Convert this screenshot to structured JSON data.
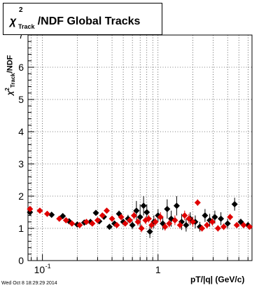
{
  "chart_data": {
    "type": "scatter",
    "title": "/NDF  Global Tracks",
    "ylabel": "/NDF",
    "xlabel": "pT/|q| (GeV/c)",
    "x_scale": "log",
    "xlim": [
      0.075,
      6.5
    ],
    "ylim": [
      0,
      7
    ],
    "grid": true,
    "y_ticks": [
      "0",
      "1",
      "2",
      "3",
      "4",
      "5",
      "6",
      "7"
    ],
    "x_ticks": [
      {
        "value": 0.1,
        "base": "10",
        "exp": "-1"
      },
      {
        "value": 1,
        "label": "1"
      }
    ],
    "series": [
      {
        "color": "#000000",
        "marker": "diamond",
        "points": [
          {
            "x": 0.078,
            "y": 1.5,
            "e": 0.1
          },
          {
            "x": 0.12,
            "y": 1.42,
            "e": 0.06
          },
          {
            "x": 0.15,
            "y": 1.38,
            "e": 0.06
          },
          {
            "x": 0.17,
            "y": 1.22,
            "e": 0.06
          },
          {
            "x": 0.2,
            "y": 1.12,
            "e": 0.05
          },
          {
            "x": 0.23,
            "y": 1.18,
            "e": 0.05
          },
          {
            "x": 0.26,
            "y": 1.2,
            "e": 0.05
          },
          {
            "x": 0.29,
            "y": 1.48,
            "e": 0.08
          },
          {
            "x": 0.31,
            "y": 1.22,
            "e": 0.06
          },
          {
            "x": 0.34,
            "y": 1.36,
            "e": 0.06
          },
          {
            "x": 0.38,
            "y": 1.05,
            "e": 0.06
          },
          {
            "x": 0.42,
            "y": 1.15,
            "e": 0.06
          },
          {
            "x": 0.46,
            "y": 1.45,
            "e": 0.1
          },
          {
            "x": 0.5,
            "y": 1.2,
            "e": 0.1
          },
          {
            "x": 0.55,
            "y": 1.3,
            "e": 0.12
          },
          {
            "x": 0.6,
            "y": 1.1,
            "e": 0.12
          },
          {
            "x": 0.65,
            "y": 1.55,
            "e": 0.3
          },
          {
            "x": 0.7,
            "y": 1.35,
            "e": 0.4
          },
          {
            "x": 0.75,
            "y": 1.7,
            "e": 0.3
          },
          {
            "x": 0.8,
            "y": 1.5,
            "e": 0.25
          },
          {
            "x": 0.85,
            "y": 0.9,
            "e": 0.2
          },
          {
            "x": 0.92,
            "y": 1.2,
            "e": 0.2
          },
          {
            "x": 1.0,
            "y": 1.4,
            "e": 0.2
          },
          {
            "x": 1.1,
            "y": 1.15,
            "e": 0.2
          },
          {
            "x": 1.2,
            "y": 1.6,
            "e": 0.3
          },
          {
            "x": 1.3,
            "y": 1.3,
            "e": 0.25
          },
          {
            "x": 1.45,
            "y": 1.7,
            "e": 0.3
          },
          {
            "x": 1.6,
            "y": 1.2,
            "e": 0.25
          },
          {
            "x": 1.75,
            "y": 1.1,
            "e": 0.2
          },
          {
            "x": 1.9,
            "y": 1.3,
            "e": 0.2
          },
          {
            "x": 2.1,
            "y": 1.2,
            "e": 0.2
          },
          {
            "x": 2.3,
            "y": 1.05,
            "e": 0.15
          },
          {
            "x": 2.55,
            "y": 1.4,
            "e": 0.2
          },
          {
            "x": 2.8,
            "y": 1.25,
            "e": 0.2
          },
          {
            "x": 3.1,
            "y": 1.35,
            "e": 0.2
          },
          {
            "x": 3.5,
            "y": 1.3,
            "e": 0.2
          },
          {
            "x": 4.0,
            "y": 1.15,
            "e": 0.15
          },
          {
            "x": 4.6,
            "y": 1.75,
            "e": 0.2
          },
          {
            "x": 5.2,
            "y": 1.2,
            "e": 0.1
          },
          {
            "x": 6.0,
            "y": 1.1,
            "e": 0.08
          }
        ]
      },
      {
        "color": "#e00000",
        "marker": "diamond",
        "points": [
          {
            "x": 0.078,
            "y": 1.6,
            "e": 0.08
          },
          {
            "x": 0.095,
            "y": 1.55,
            "e": 0.05
          },
          {
            "x": 0.11,
            "y": 1.45,
            "e": 0.05
          },
          {
            "x": 0.14,
            "y": 1.3,
            "e": 0.05
          },
          {
            "x": 0.16,
            "y": 1.25,
            "e": 0.05
          },
          {
            "x": 0.18,
            "y": 1.15,
            "e": 0.05
          },
          {
            "x": 0.21,
            "y": 1.1,
            "e": 0.05
          },
          {
            "x": 0.24,
            "y": 1.2,
            "e": 0.05
          },
          {
            "x": 0.27,
            "y": 1.15,
            "e": 0.05
          },
          {
            "x": 0.3,
            "y": 1.25,
            "e": 0.05
          },
          {
            "x": 0.33,
            "y": 1.4,
            "e": 0.06
          },
          {
            "x": 0.36,
            "y": 1.55,
            "e": 0.08
          },
          {
            "x": 0.4,
            "y": 1.3,
            "e": 0.06
          },
          {
            "x": 0.44,
            "y": 1.1,
            "e": 0.06
          },
          {
            "x": 0.48,
            "y": 1.35,
            "e": 0.08
          },
          {
            "x": 0.52,
            "y": 1.15,
            "e": 0.08
          },
          {
            "x": 0.57,
            "y": 1.25,
            "e": 0.1
          },
          {
            "x": 0.62,
            "y": 1.4,
            "e": 0.12
          },
          {
            "x": 0.67,
            "y": 1.2,
            "e": 0.12
          },
          {
            "x": 0.72,
            "y": 1.0,
            "e": 0.12
          },
          {
            "x": 0.78,
            "y": 1.25,
            "e": 0.12
          },
          {
            "x": 0.83,
            "y": 1.3,
            "e": 0.12
          },
          {
            "x": 0.88,
            "y": 1.1,
            "e": 0.12
          },
          {
            "x": 0.95,
            "y": 1.2,
            "e": 0.12
          },
          {
            "x": 1.05,
            "y": 1.35,
            "e": 0.15
          },
          {
            "x": 1.15,
            "y": 1.05,
            "e": 0.12
          },
          {
            "x": 1.25,
            "y": 1.15,
            "e": 0.12
          },
          {
            "x": 1.4,
            "y": 1.25,
            "e": 0.15
          },
          {
            "x": 1.55,
            "y": 1.1,
            "e": 0.12
          },
          {
            "x": 1.7,
            "y": 1.4,
            "e": 0.15
          },
          {
            "x": 1.85,
            "y": 1.3,
            "e": 0.15
          },
          {
            "x": 2.0,
            "y": 1.2,
            "e": 0.15
          },
          {
            "x": 2.2,
            "y": 1.8,
            "e": 0.1
          },
          {
            "x": 2.4,
            "y": 1.0,
            "e": 0.1
          },
          {
            "x": 2.65,
            "y": 1.1,
            "e": 0.1
          },
          {
            "x": 2.95,
            "y": 1.2,
            "e": 0.12
          },
          {
            "x": 3.3,
            "y": 1.0,
            "e": 0.1
          },
          {
            "x": 3.7,
            "y": 1.05,
            "e": 0.1
          },
          {
            "x": 4.2,
            "y": 1.35,
            "e": 0.1
          },
          {
            "x": 4.8,
            "y": 1.1,
            "e": 0.08
          },
          {
            "x": 5.5,
            "y": 1.1,
            "e": 0.08
          },
          {
            "x": 6.2,
            "y": 1.05,
            "e": 0.08
          }
        ]
      }
    ]
  },
  "title_box": {
    "chi": "χ",
    "sup": "2",
    "sub": "Track",
    "rest": "/NDF  Global Tracks"
  },
  "y_axis_title": {
    "chi": "χ",
    "sup": "2",
    "sub": "Track",
    "rest": "/NDF"
  },
  "x_axis_title": "pT/|q| (GeV/c)",
  "timestamp": "Wed Oct  8 18:29:29 2014"
}
